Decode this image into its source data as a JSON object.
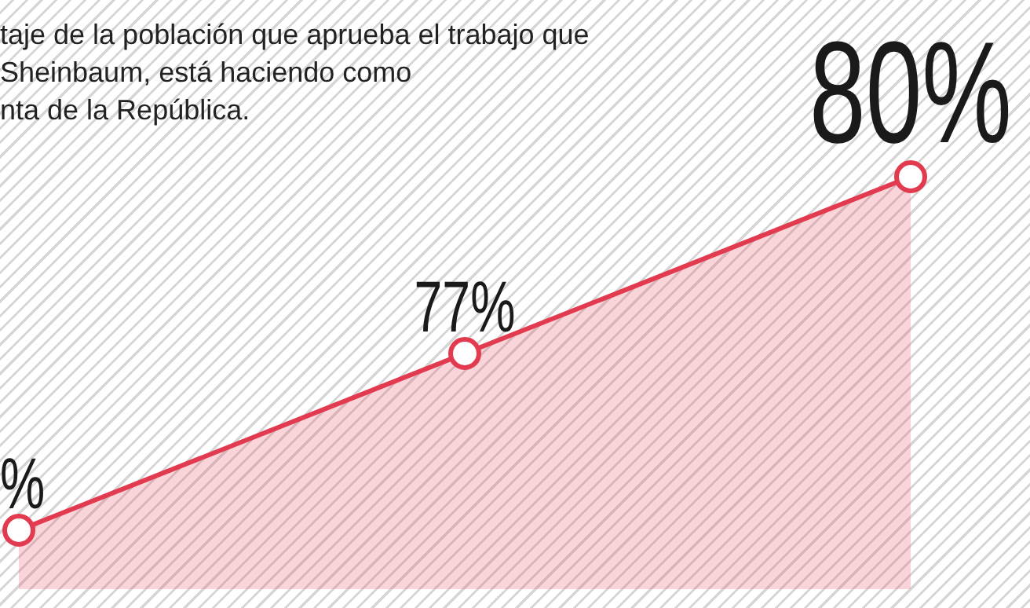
{
  "chart_data": {
    "type": "area",
    "title": "taje de la población que aprueba el trabajo que\nSheinbaum, está haciendo como\nnta de la República.",
    "categories": [
      null,
      null,
      null
    ],
    "series": [
      {
        "color": "#e23a4f",
        "values": [
          74,
          77,
          80
        ],
        "value_labels": [
          "%",
          "77%",
          "80%"
        ]
      }
    ],
    "marker": "circle",
    "legend": false
  }
}
